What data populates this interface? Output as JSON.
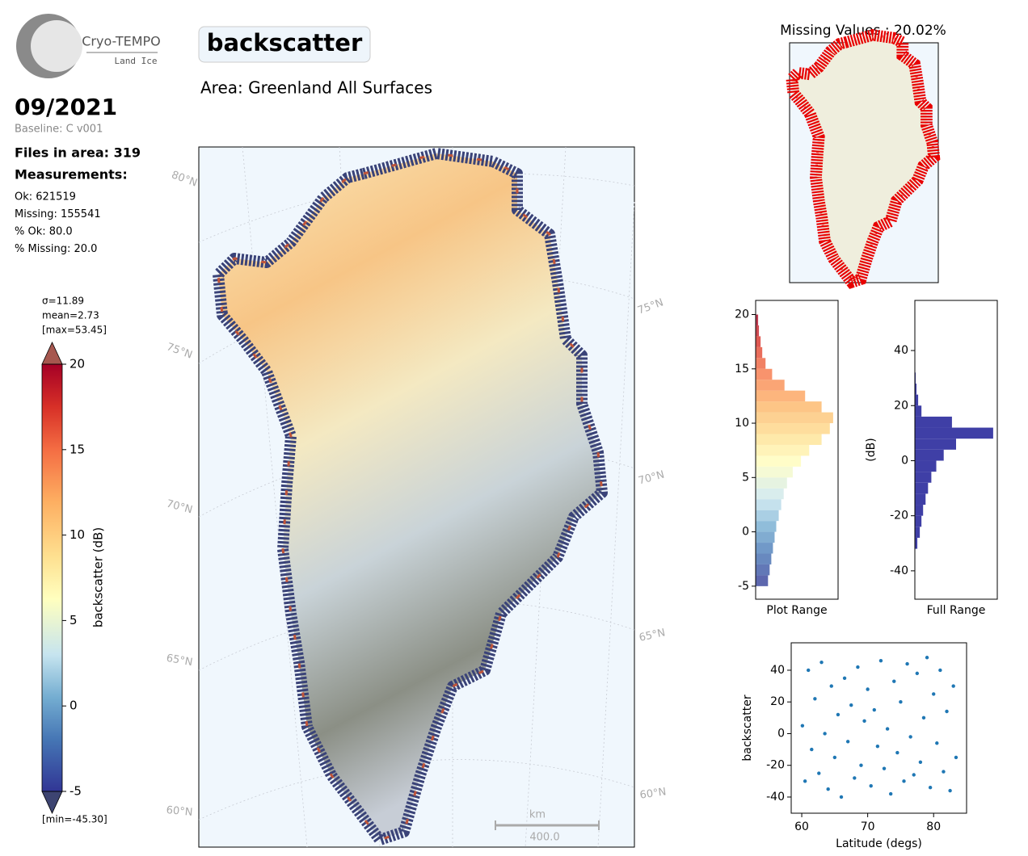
{
  "logo": {
    "title": "Cryo-TEMPO",
    "subtitle": "Land Ice"
  },
  "header": {
    "parameter": "backscatter",
    "area": "Area: Greenland All Surfaces",
    "date": "09/2021",
    "baseline": "Baseline: C v001"
  },
  "stats": {
    "files": "Files in area: 319",
    "measurements": "Measurements:",
    "lines": [
      "Ok: 621519",
      "Missing: 155541",
      "% Ok: 80.0",
      "% Missing: 20.0"
    ]
  },
  "colorbar": {
    "label": "backscatter (dB)",
    "stats": [
      "σ=11.89",
      "mean=2.73",
      "[max=53.45]"
    ],
    "min_label": "[min=-45.30]",
    "ylim": [
      -5,
      20
    ],
    "yticks": [
      -5,
      0,
      5,
      10,
      15,
      20
    ]
  },
  "map": {
    "lat_labels": [
      "80°N",
      "75°N",
      "75°N",
      "70°N",
      "70°N",
      "65°N",
      "65°N",
      "60°N",
      "60°N"
    ],
    "scalebar": {
      "unit": "km",
      "label": "400.0"
    }
  },
  "missing": {
    "title": "Missing Values : 20.02%"
  },
  "chart_data": [
    {
      "type": "histogram",
      "orientation": "horizontal",
      "xlabel": "Plot Range",
      "colormap": "RdYlBu_r",
      "bins": [
        -5,
        -4,
        -3,
        -2,
        -1,
        0,
        1,
        2,
        3,
        4,
        5,
        6,
        7,
        8,
        9,
        10,
        11,
        12,
        13,
        14,
        15,
        16,
        17,
        18,
        19,
        20
      ],
      "values": [
        15,
        17,
        19,
        21,
        23,
        25,
        28,
        31,
        34,
        38,
        45,
        55,
        65,
        80,
        90,
        94,
        80,
        60,
        35,
        20,
        12,
        8,
        6,
        4,
        3
      ],
      "xlim": [
        0,
        100
      ],
      "ylim": [
        -6.2,
        21.3
      ],
      "yticks": [
        -5,
        0,
        5,
        10,
        15,
        20
      ]
    },
    {
      "type": "histogram",
      "orientation": "horizontal",
      "xlabel": "Full Range",
      "ylabel": "(dB)",
      "color": "#3f3fa6",
      "bins": [
        -32,
        -28,
        -24,
        -20,
        -16,
        -12,
        -8,
        -4,
        0,
        4,
        8,
        12,
        16,
        20,
        24,
        28,
        32
      ],
      "values": [
        3,
        6,
        8,
        10,
        13,
        16,
        20,
        26,
        35,
        50,
        95,
        45,
        8,
        4,
        2,
        1
      ],
      "xlim": [
        0,
        100
      ],
      "ylim": [
        -50.3,
        58.2
      ],
      "yticks": [
        -40,
        -20,
        0,
        20,
        40
      ]
    },
    {
      "type": "scatter",
      "xlabel": "Latitude (degs)",
      "ylabel": "backscatter",
      "color": "#1f77b4",
      "x": [
        60.1,
        60.5,
        61,
        61.5,
        62,
        62.6,
        63,
        63.5,
        64,
        64.5,
        65,
        65.5,
        66,
        66.5,
        67,
        67.5,
        68,
        68.5,
        69,
        69.5,
        70,
        70.5,
        71,
        71.5,
        72,
        72.5,
        73,
        73.5,
        74,
        74.5,
        75,
        75.5,
        76,
        76.5,
        77,
        77.5,
        78,
        78.5,
        79,
        79.5,
        80,
        80.5,
        81,
        81.5,
        82,
        82.5,
        83,
        83.4
      ],
      "y": [
        5,
        -30,
        40,
        -10,
        22,
        -25,
        45,
        0,
        -35,
        30,
        -15,
        12,
        -40,
        35,
        -5,
        18,
        -28,
        42,
        -20,
        8,
        28,
        -33,
        15,
        -8,
        46,
        -22,
        3,
        -38,
        33,
        -12,
        20,
        -30,
        44,
        -2,
        -26,
        38,
        -18,
        10,
        48,
        -34,
        25,
        -6,
        40,
        -24,
        14,
        -36,
        30,
        -15
      ],
      "xlim": [
        58.4,
        85
      ],
      "ylim": [
        -50.2,
        57.3
      ],
      "xticks": [
        60,
        70,
        80
      ],
      "yticks": [
        -40,
        -20,
        0,
        20,
        40
      ]
    }
  ]
}
